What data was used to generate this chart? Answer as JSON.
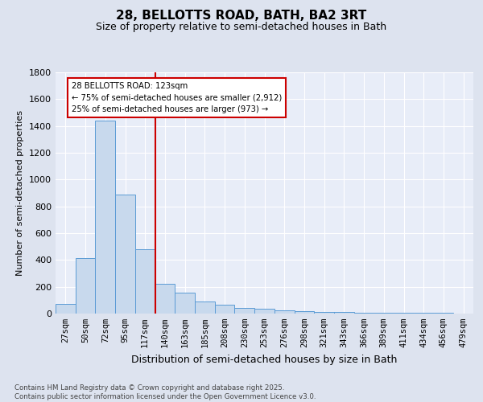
{
  "title1": "28, BELLOTTS ROAD, BATH, BA2 3RT",
  "title2": "Size of property relative to semi-detached houses in Bath",
  "xlabel": "Distribution of semi-detached houses by size in Bath",
  "ylabel": "Number of semi-detached properties",
  "categories": [
    "27sqm",
    "50sqm",
    "72sqm",
    "95sqm",
    "117sqm",
    "140sqm",
    "163sqm",
    "185sqm",
    "208sqm",
    "230sqm",
    "253sqm",
    "276sqm",
    "298sqm",
    "321sqm",
    "343sqm",
    "366sqm",
    "389sqm",
    "411sqm",
    "434sqm",
    "456sqm",
    "479sqm"
  ],
  "values": [
    75,
    415,
    1440,
    890,
    480,
    220,
    155,
    90,
    65,
    40,
    35,
    25,
    20,
    15,
    12,
    8,
    6,
    5,
    5,
    4,
    3
  ],
  "bar_color": "#c8d9ed",
  "bar_edge_color": "#5b9bd5",
  "vline_x_index": 4,
  "vline_color": "#cc0000",
  "annotation_title": "28 BELLOTTS ROAD: 123sqm",
  "annotation_line1": "← 75% of semi-detached houses are smaller (2,912)",
  "annotation_line2": "25% of semi-detached houses are larger (973) →",
  "annotation_box_color": "#cc0000",
  "ylim": [
    0,
    1800
  ],
  "yticks": [
    0,
    200,
    400,
    600,
    800,
    1000,
    1200,
    1400,
    1600,
    1800
  ],
  "footnote1": "Contains HM Land Registry data © Crown copyright and database right 2025.",
  "footnote2": "Contains public sector information licensed under the Open Government Licence v3.0.",
  "bg_color": "#dde3ef",
  "plot_bg_color": "#e8edf8",
  "grid_color": "#ffffff",
  "title1_fontsize": 11,
  "title2_fontsize": 9,
  "ylabel_fontsize": 8,
  "xlabel_fontsize": 9
}
